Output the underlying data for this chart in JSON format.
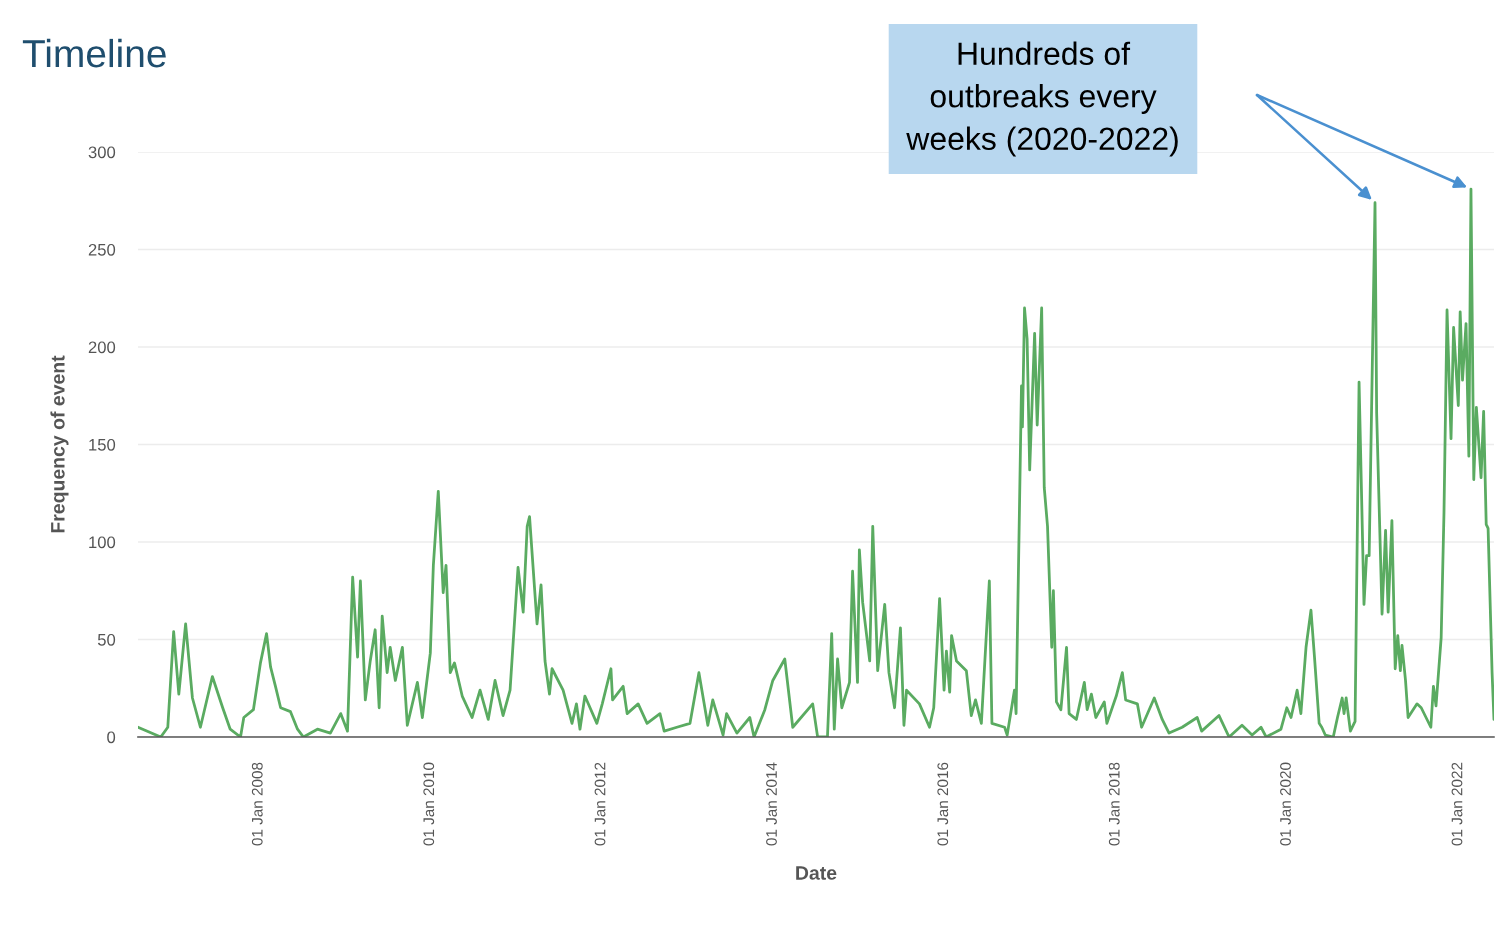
{
  "chart_data": {
    "type": "line",
    "title": "Timeline",
    "xlabel": "Date",
    "ylabel": "Frequency of event",
    "x": [
      "2006-08-05",
      "2006-11-10",
      "2006-12-10",
      "2007-01-04",
      "2007-01-26",
      "2007-02-24",
      "2007-03-25",
      "2007-04-28",
      "2007-06-18",
      "2007-08-01",
      "2007-09-02",
      "2007-10-16",
      "2007-10-30",
      "2007-12-10",
      "2008-01-09",
      "2008-02-04",
      "2008-02-21",
      "2008-03-13",
      "2008-04-04",
      "2008-05-16",
      "2008-06-15",
      "2008-07-10",
      "2008-09-08",
      "2008-11-02",
      "2008-12-16",
      "2009-01-14",
      "2009-02-05",
      "2009-02-26",
      "2009-03-10",
      "2009-03-31",
      "2009-04-21",
      "2009-05-12",
      "2009-05-29",
      "2009-06-11",
      "2009-07-02",
      "2009-07-15",
      "2009-08-06",
      "2009-09-05",
      "2009-09-26",
      "2009-11-08",
      "2009-11-29",
      "2010-01-02",
      "2010-01-15",
      "2010-02-05",
      "2010-02-26",
      "2010-03-10",
      "2010-03-28",
      "2010-04-15",
      "2010-05-18",
      "2010-06-29",
      "2010-08-02",
      "2010-09-06",
      "2010-10-05",
      "2010-11-08",
      "2010-12-08",
      "2011-01-11",
      "2011-02-02",
      "2011-02-19",
      "2011-03-01",
      "2011-04-02",
      "2011-04-19",
      "2011-05-06",
      "2011-05-25",
      "2011-06-05",
      "2011-07-22",
      "2011-08-29",
      "2011-09-17",
      "2011-10-02",
      "2011-10-23",
      "2011-12-13",
      "2012-01-05",
      "2012-02-11",
      "2012-02-18",
      "2012-04-03",
      "2012-04-20",
      "2012-06-06",
      "2012-07-14",
      "2012-09-07",
      "2012-09-25",
      "2012-11-18",
      "2013-01-13",
      "2013-02-20",
      "2013-03-30",
      "2013-04-20",
      "2013-06-03",
      "2013-06-18",
      "2013-08-01",
      "2013-09-25",
      "2013-10-13",
      "2013-11-28",
      "2014-01-01",
      "2014-02-21",
      "2014-03-27",
      "2014-06-20",
      "2014-07-11",
      "2014-08-22",
      "2014-09-09",
      "2014-09-20",
      "2014-10-04",
      "2014-10-22",
      "2014-11-24",
      "2014-12-07",
      "2014-12-28",
      "2015-01-05",
      "2015-01-19",
      "2015-02-18",
      "2015-03-03",
      "2015-03-24",
      "2015-04-23",
      "2015-05-11",
      "2015-06-04",
      "2015-06-29",
      "2015-07-14",
      "2015-07-25",
      "2015-09-18",
      "2015-10-31",
      "2015-11-18",
      "2015-12-13",
      "2016-01-01",
      "2016-01-11",
      "2016-01-25",
      "2016-02-02",
      "2016-02-23",
      "2016-04-05",
      "2016-04-26",
      "2016-05-14",
      "2016-06-08",
      "2016-07-12",
      "2016-07-23",
      "2016-09-15",
      "2016-09-26",
      "2016-10-27",
      "2016-11-03",
      "2016-11-26",
      "2016-11-30",
      "2016-12-09",
      "2016-12-20",
      "2016-12-31",
      "2017-01-21",
      "2017-02-01",
      "2017-02-20",
      "2017-03-03",
      "2017-03-17",
      "2017-04-04",
      "2017-04-11",
      "2017-04-24",
      "2017-05-13",
      "2017-06-06",
      "2017-06-17",
      "2017-07-18",
      "2017-08-21",
      "2017-09-02",
      "2017-09-20",
      "2017-10-09",
      "2017-11-14",
      "2017-11-25",
      "2018-01-04",
      "2018-01-30",
      "2018-02-13",
      "2018-04-04",
      "2018-04-22",
      "2018-06-15",
      "2018-07-19",
      "2018-08-17",
      "2018-10-12",
      "2018-12-15",
      "2019-01-03",
      "2019-03-18",
      "2019-04-30",
      "2019-06-24",
      "2019-08-06",
      "2019-09-13",
      "2019-10-05",
      "2019-12-07",
      "2020-01-01",
      "2020-01-19",
      "2020-02-14",
      "2020-03-01",
      "2020-03-23",
      "2020-04-13",
      "2020-04-28",
      "2020-05-18",
      "2020-05-29",
      "2020-06-13",
      "2020-07-17",
      "2020-08-04",
      "2020-08-24",
      "2020-09-01",
      "2020-09-10",
      "2020-09-28",
      "2020-10-18",
      "2020-11-04",
      "2020-11-25",
      "2020-12-06",
      "2020-12-17",
      "2021-01-11",
      "2021-01-18",
      "2021-02-10",
      "2021-02-25",
      "2021-03-08",
      "2021-03-24",
      "2021-04-07",
      "2021-04-18",
      "2021-04-29",
      "2021-05-06",
      "2021-05-21",
      "2021-06-01",
      "2021-07-09",
      "2021-07-27",
      "2021-09-06",
      "2021-09-17",
      "2021-09-28",
      "2021-10-20",
      "2021-11-01",
      "2021-11-14",
      "2021-12-01",
      "2021-12-12",
      "2022-01-01",
      "2022-01-09",
      "2022-01-19",
      "2022-02-03",
      "2022-02-15",
      "2022-02-24",
      "2022-03-08",
      "2022-03-19",
      "2022-04-08",
      "2022-04-19",
      "2022-04-30",
      "2022-05-08",
      "2022-05-25",
      "2022-06-02"
    ],
    "series": [
      {
        "color": "#5aab61",
        "values": [
          5,
          0,
          5,
          54,
          22,
          58,
          20,
          5,
          31,
          15,
          4,
          0,
          10,
          14,
          38,
          53,
          36,
          26,
          15,
          13,
          4,
          0,
          4,
          2,
          12,
          3,
          82,
          41,
          80,
          19,
          39,
          55,
          15,
          62,
          33,
          46,
          29,
          46,
          6,
          28,
          10,
          43,
          88,
          126,
          74,
          88,
          33,
          38,
          21,
          10,
          24,
          9,
          29,
          11,
          24,
          87,
          64,
          108,
          113,
          58,
          78,
          39,
          22,
          35,
          24,
          7,
          17,
          4,
          21,
          7,
          17,
          35,
          19,
          26,
          12,
          17,
          7,
          12,
          3,
          5,
          7,
          33,
          6,
          19,
          1,
          12,
          2,
          10,
          0,
          14,
          29,
          40,
          5,
          17,
          0,
          0,
          53,
          4,
          40,
          15,
          28,
          85,
          28,
          96,
          69,
          39,
          108,
          34,
          68,
          33,
          15,
          56,
          6,
          24,
          17,
          5,
          15,
          71,
          24,
          44,
          23,
          52,
          39,
          34,
          11,
          19,
          7,
          80,
          7,
          5,
          1,
          24,
          12,
          180,
          159,
          220,
          204,
          137,
          207,
          160,
          220,
          128,
          108,
          46,
          75,
          18,
          14,
          46,
          12,
          9,
          28,
          14,
          22,
          10,
          18,
          7,
          21,
          33,
          19,
          17,
          5,
          20,
          9,
          2,
          5,
          10,
          3,
          11,
          0,
          6,
          1,
          5,
          0,
          4,
          15,
          10,
          24,
          12,
          46,
          65,
          41,
          7,
          5,
          1,
          0,
          10,
          20,
          12,
          20,
          3,
          8,
          182,
          68,
          93,
          93,
          274,
          166,
          63,
          106,
          64,
          111,
          35,
          52,
          34,
          47,
          29,
          10,
          17,
          15,
          5,
          26,
          16,
          51,
          115,
          219,
          153,
          210,
          170,
          218,
          183,
          212,
          144,
          281,
          132,
          169,
          133,
          167,
          109,
          107,
          33,
          9
        ]
      }
    ],
    "xlim": [
      "2006-08-05",
      "2022-06-02"
    ],
    "xticks": [
      {
        "value": "2008-01-01",
        "label": "01 Jan 2008"
      },
      {
        "value": "2010-01-01",
        "label": "01 Jan 2010"
      },
      {
        "value": "2012-01-01",
        "label": "01 Jan 2012"
      },
      {
        "value": "2014-01-01",
        "label": "01 Jan 2014"
      },
      {
        "value": "2016-01-01",
        "label": "01 Jan 2016"
      },
      {
        "value": "2018-01-01",
        "label": "01 Jan 2018"
      },
      {
        "value": "2020-01-01",
        "label": "01 Jan 2020"
      },
      {
        "value": "2022-01-01",
        "label": "01 Jan 2022"
      }
    ],
    "ylim": [
      0,
      300
    ],
    "yticks": [
      0,
      50,
      100,
      150,
      200,
      250,
      300
    ],
    "grid": "y",
    "annotations": [
      "Hundreds of\noutbreaks every\nweeks (2020-2022)"
    ]
  }
}
